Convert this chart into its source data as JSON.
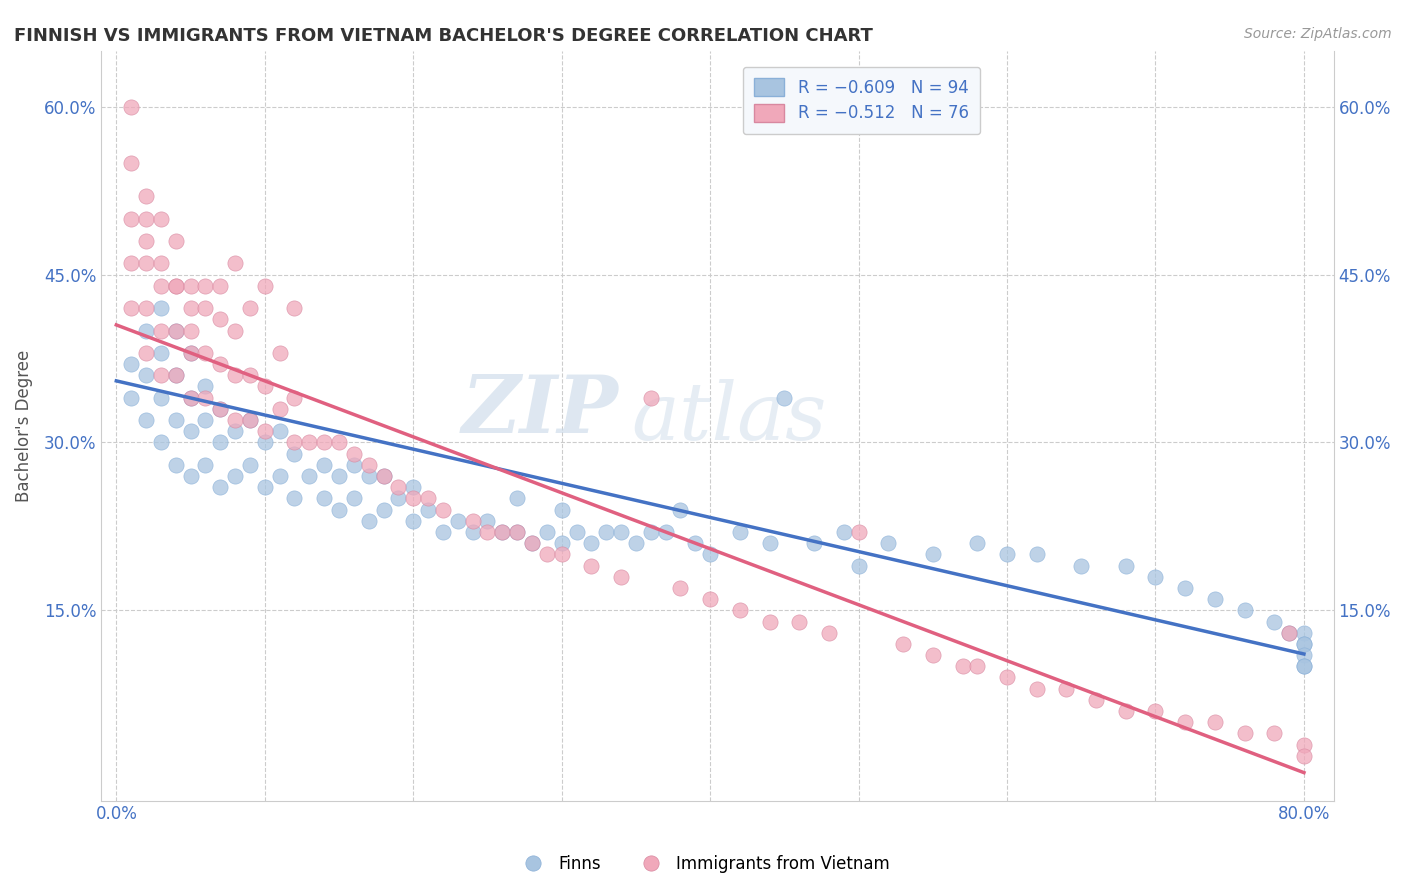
{
  "title": "FINNISH VS IMMIGRANTS FROM VIETNAM BACHELOR'S DEGREE CORRELATION CHART",
  "source": "Source: ZipAtlas.com",
  "ylabel": "Bachelor's Degree",
  "x_min": 0.0,
  "x_max": 0.8,
  "y_min": 0.0,
  "y_max": 0.65,
  "blue_color": "#a8c4e0",
  "pink_color": "#f0a8ba",
  "blue_line_color": "#4472c4",
  "pink_line_color": "#e06080",
  "legend_R_blue": "R = −0.609",
  "legend_N_blue": "N = 94",
  "legend_R_pink": "R = −0.512",
  "legend_N_pink": "N = 76",
  "watermark_zip": "ZIP",
  "watermark_atlas": "atlas",
  "background_color": "#ffffff",
  "grid_color": "#cccccc",
  "tick_color": "#4472c4",
  "title_color": "#333333",
  "blue_scatter_x": [
    0.01,
    0.01,
    0.02,
    0.02,
    0.02,
    0.03,
    0.03,
    0.03,
    0.03,
    0.04,
    0.04,
    0.04,
    0.04,
    0.05,
    0.05,
    0.05,
    0.05,
    0.06,
    0.06,
    0.06,
    0.07,
    0.07,
    0.07,
    0.08,
    0.08,
    0.09,
    0.09,
    0.1,
    0.1,
    0.11,
    0.11,
    0.12,
    0.12,
    0.13,
    0.14,
    0.14,
    0.15,
    0.15,
    0.16,
    0.16,
    0.17,
    0.17,
    0.18,
    0.18,
    0.19,
    0.2,
    0.2,
    0.21,
    0.22,
    0.23,
    0.24,
    0.25,
    0.26,
    0.27,
    0.27,
    0.28,
    0.29,
    0.3,
    0.3,
    0.31,
    0.32,
    0.33,
    0.34,
    0.35,
    0.36,
    0.37,
    0.38,
    0.39,
    0.4,
    0.42,
    0.44,
    0.45,
    0.47,
    0.49,
    0.5,
    0.52,
    0.55,
    0.58,
    0.6,
    0.62,
    0.65,
    0.68,
    0.7,
    0.72,
    0.74,
    0.76,
    0.78,
    0.79,
    0.8,
    0.8,
    0.8,
    0.8,
    0.8,
    0.8
  ],
  "blue_scatter_y": [
    0.34,
    0.37,
    0.32,
    0.36,
    0.4,
    0.3,
    0.34,
    0.38,
    0.42,
    0.28,
    0.32,
    0.36,
    0.4,
    0.27,
    0.31,
    0.34,
    0.38,
    0.28,
    0.32,
    0.35,
    0.26,
    0.3,
    0.33,
    0.27,
    0.31,
    0.28,
    0.32,
    0.26,
    0.3,
    0.27,
    0.31,
    0.25,
    0.29,
    0.27,
    0.25,
    0.28,
    0.24,
    0.27,
    0.25,
    0.28,
    0.23,
    0.27,
    0.24,
    0.27,
    0.25,
    0.23,
    0.26,
    0.24,
    0.22,
    0.23,
    0.22,
    0.23,
    0.22,
    0.22,
    0.25,
    0.21,
    0.22,
    0.21,
    0.24,
    0.22,
    0.21,
    0.22,
    0.22,
    0.21,
    0.22,
    0.22,
    0.24,
    0.21,
    0.2,
    0.22,
    0.21,
    0.34,
    0.21,
    0.22,
    0.19,
    0.21,
    0.2,
    0.21,
    0.2,
    0.2,
    0.19,
    0.19,
    0.18,
    0.17,
    0.16,
    0.15,
    0.14,
    0.13,
    0.13,
    0.12,
    0.12,
    0.11,
    0.1,
    0.1
  ],
  "pink_scatter_x": [
    0.01,
    0.01,
    0.01,
    0.02,
    0.02,
    0.02,
    0.02,
    0.03,
    0.03,
    0.03,
    0.04,
    0.04,
    0.04,
    0.05,
    0.05,
    0.05,
    0.06,
    0.06,
    0.06,
    0.07,
    0.07,
    0.07,
    0.08,
    0.08,
    0.08,
    0.09,
    0.09,
    0.1,
    0.1,
    0.11,
    0.12,
    0.12,
    0.13,
    0.14,
    0.15,
    0.16,
    0.17,
    0.18,
    0.19,
    0.2,
    0.21,
    0.22,
    0.24,
    0.25,
    0.26,
    0.27,
    0.28,
    0.29,
    0.3,
    0.32,
    0.34,
    0.36,
    0.38,
    0.4,
    0.42,
    0.44,
    0.46,
    0.48,
    0.5,
    0.53,
    0.55,
    0.57,
    0.58,
    0.6,
    0.62,
    0.64,
    0.66,
    0.68,
    0.7,
    0.72,
    0.74,
    0.76,
    0.78,
    0.79,
    0.8,
    0.8
  ],
  "pink_scatter_y": [
    0.42,
    0.46,
    0.5,
    0.38,
    0.42,
    0.46,
    0.5,
    0.36,
    0.4,
    0.44,
    0.36,
    0.4,
    0.44,
    0.34,
    0.38,
    0.42,
    0.34,
    0.38,
    0.42,
    0.33,
    0.37,
    0.41,
    0.32,
    0.36,
    0.4,
    0.32,
    0.36,
    0.31,
    0.35,
    0.33,
    0.3,
    0.34,
    0.3,
    0.3,
    0.3,
    0.29,
    0.28,
    0.27,
    0.26,
    0.25,
    0.25,
    0.24,
    0.23,
    0.22,
    0.22,
    0.22,
    0.21,
    0.2,
    0.2,
    0.19,
    0.18,
    0.34,
    0.17,
    0.16,
    0.15,
    0.14,
    0.14,
    0.13,
    0.22,
    0.12,
    0.11,
    0.1,
    0.1,
    0.09,
    0.08,
    0.08,
    0.07,
    0.06,
    0.06,
    0.05,
    0.05,
    0.04,
    0.04,
    0.13,
    0.03,
    0.02
  ],
  "pink_high_x": [
    0.01,
    0.01,
    0.02,
    0.02,
    0.03,
    0.03,
    0.04,
    0.04,
    0.05,
    0.05,
    0.06,
    0.07,
    0.08,
    0.09,
    0.1,
    0.11,
    0.12
  ],
  "pink_high_y": [
    0.6,
    0.55,
    0.52,
    0.48,
    0.5,
    0.46,
    0.44,
    0.48,
    0.44,
    0.4,
    0.44,
    0.44,
    0.46,
    0.42,
    0.44,
    0.38,
    0.42
  ]
}
